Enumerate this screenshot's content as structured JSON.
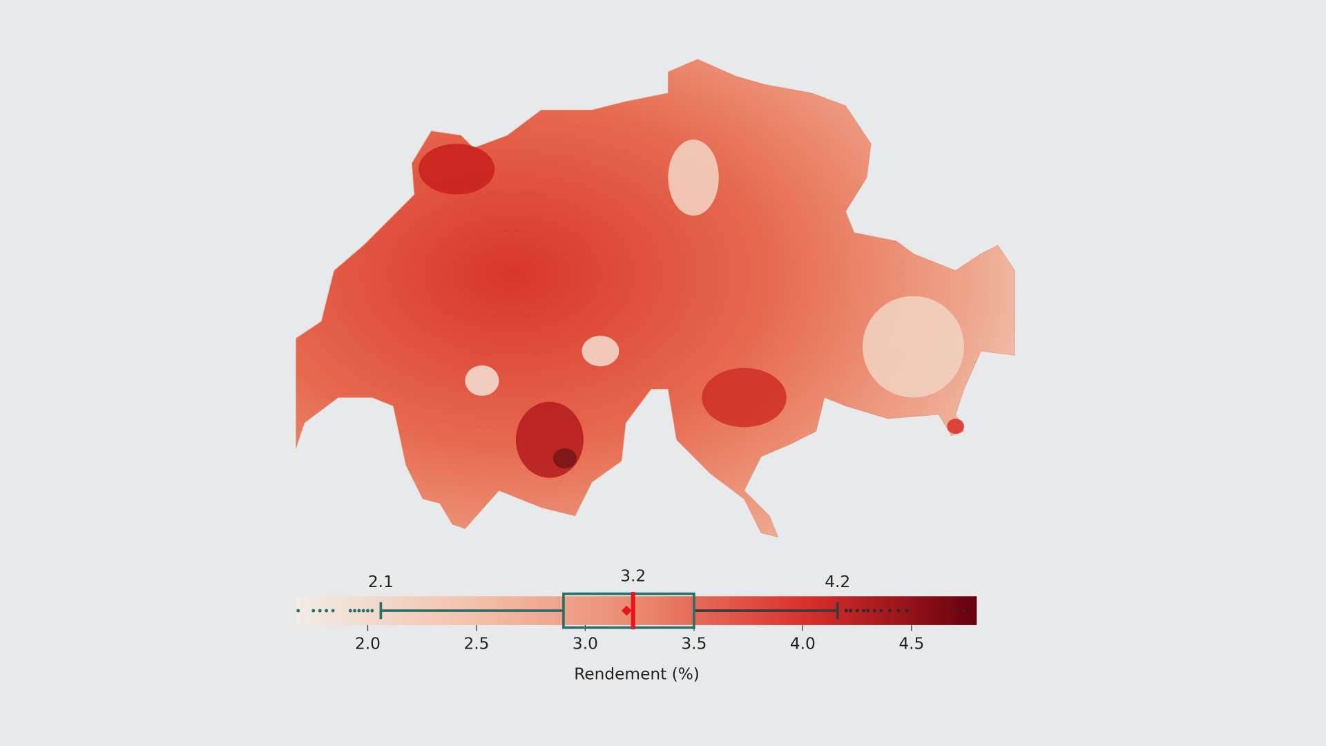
{
  "chart_data": {
    "type": "boxplot",
    "xlabel": "Rendement (%)",
    "xlim": [
      1.67,
      4.8
    ],
    "xticks": [
      {
        "value": 2.0,
        "label": "2.0"
      },
      {
        "value": 2.5,
        "label": "2.5"
      },
      {
        "value": 3.0,
        "label": "3.0"
      },
      {
        "value": 3.5,
        "label": "3.5"
      },
      {
        "value": 4.0,
        "label": "4.0"
      },
      {
        "value": 4.5,
        "label": "4.5"
      }
    ],
    "colors": [
      "#f1ece6",
      "#f4c3ad",
      "#ea8a70",
      "#d9302a",
      "#65000f"
    ],
    "box_color": "#2a6e6a",
    "median_color": "#e8141e",
    "box": {
      "whisker_low": 2.06,
      "q1": 2.9,
      "median": 3.22,
      "q3": 3.5,
      "whisker_high": 4.16,
      "mean": 3.19,
      "outliers": [
        1.68,
        1.75,
        1.78,
        1.81,
        1.84,
        1.92,
        1.94,
        1.96,
        1.98,
        2.0,
        2.02,
        4.2,
        4.22,
        4.25,
        4.28,
        4.3,
        4.33,
        4.36,
        4.4,
        4.44,
        4.48,
        4.7,
        4.74
      ]
    },
    "annotations": [
      {
        "value": 2.06,
        "label": "2.1"
      },
      {
        "value": 3.22,
        "label": "3.2"
      },
      {
        "value": 4.16,
        "label": "4.2"
      }
    ]
  }
}
